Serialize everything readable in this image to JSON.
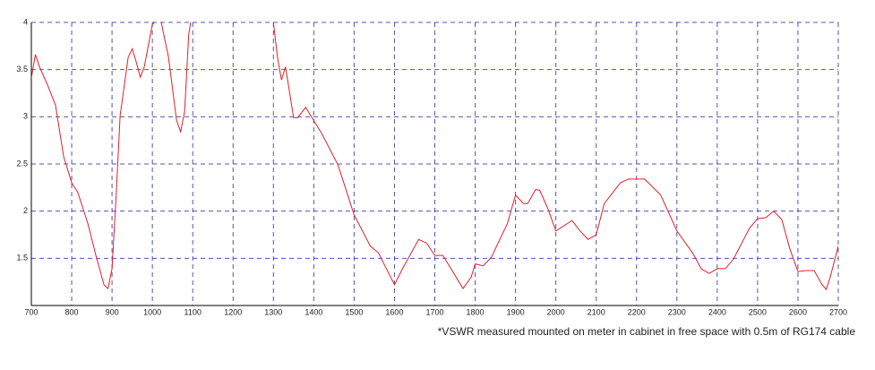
{
  "chart_data": {
    "type": "line",
    "note": "*VSWR measured mounted on meter in cabinet in free space with 0.5m of RG174 cable",
    "x": [
      700,
      710,
      720,
      740,
      760,
      780,
      800,
      815,
      840,
      860,
      880,
      890,
      900,
      910,
      920,
      940,
      950,
      960,
      970,
      980,
      1000,
      1005,
      1010,
      1022,
      1040,
      1060,
      1070,
      1080,
      1090,
      1095,
      1200,
      1300,
      1310,
      1320,
      1330,
      1350,
      1360,
      1380,
      1400,
      1420,
      1460,
      1500,
      1540,
      1560,
      1580,
      1600,
      1620,
      1660,
      1680,
      1700,
      1720,
      1740,
      1770,
      1790,
      1800,
      1820,
      1840,
      1880,
      1900,
      1920,
      1930,
      1950,
      1960,
      1980,
      2000,
      2040,
      2060,
      2080,
      2100,
      2120,
      2160,
      2180,
      2200,
      2220,
      2260,
      2300,
      2340,
      2360,
      2380,
      2400,
      2420,
      2440,
      2480,
      2500,
      2520,
      2540,
      2560,
      2580,
      2600,
      2620,
      2640,
      2660,
      2670,
      2680,
      2700
    ],
    "series": [
      {
        "color": "#e0202a",
        "values": [
          3.41,
          3.66,
          3.53,
          3.34,
          3.12,
          2.58,
          2.3,
          2.2,
          1.87,
          1.53,
          1.22,
          1.18,
          1.39,
          2.15,
          3.01,
          3.63,
          3.72,
          3.58,
          3.42,
          3.53,
          3.98,
          4,
          null,
          4,
          3.63,
          2.96,
          2.84,
          3.06,
          3.87,
          4,
          null,
          4,
          3.63,
          3.39,
          3.53,
          2.99,
          2.99,
          3.1,
          2.96,
          2.82,
          2.49,
          1.96,
          1.63,
          1.56,
          1.39,
          1.22,
          1.39,
          1.7,
          1.66,
          1.53,
          1.53,
          1.39,
          1.18,
          1.3,
          1.44,
          1.42,
          1.51,
          1.87,
          2.17,
          2.08,
          2.08,
          2.23,
          2.22,
          2.03,
          1.79,
          1.9,
          1.79,
          1.7,
          1.75,
          2.08,
          2.3,
          2.34,
          2.34,
          2.34,
          2.17,
          1.79,
          1.55,
          1.39,
          1.34,
          1.39,
          1.39,
          1.49,
          1.82,
          1.92,
          1.93,
          2,
          1.91,
          1.6,
          1.36,
          1.37,
          1.37,
          1.22,
          1.17,
          1.3,
          1.63
        ]
      }
    ],
    "xlim": [
      700,
      2700
    ],
    "xticks": [
      700,
      800,
      900,
      1000,
      1100,
      1200,
      1300,
      1400,
      1500,
      1600,
      1700,
      1800,
      1900,
      2000,
      2100,
      2200,
      2300,
      2400,
      2500,
      2600,
      2700
    ],
    "ylim": [
      1,
      4
    ],
    "yticks": [
      1.5,
      2,
      2.5,
      3,
      3.5,
      4
    ],
    "grid": true,
    "grid_color": "#2a2a9a"
  }
}
